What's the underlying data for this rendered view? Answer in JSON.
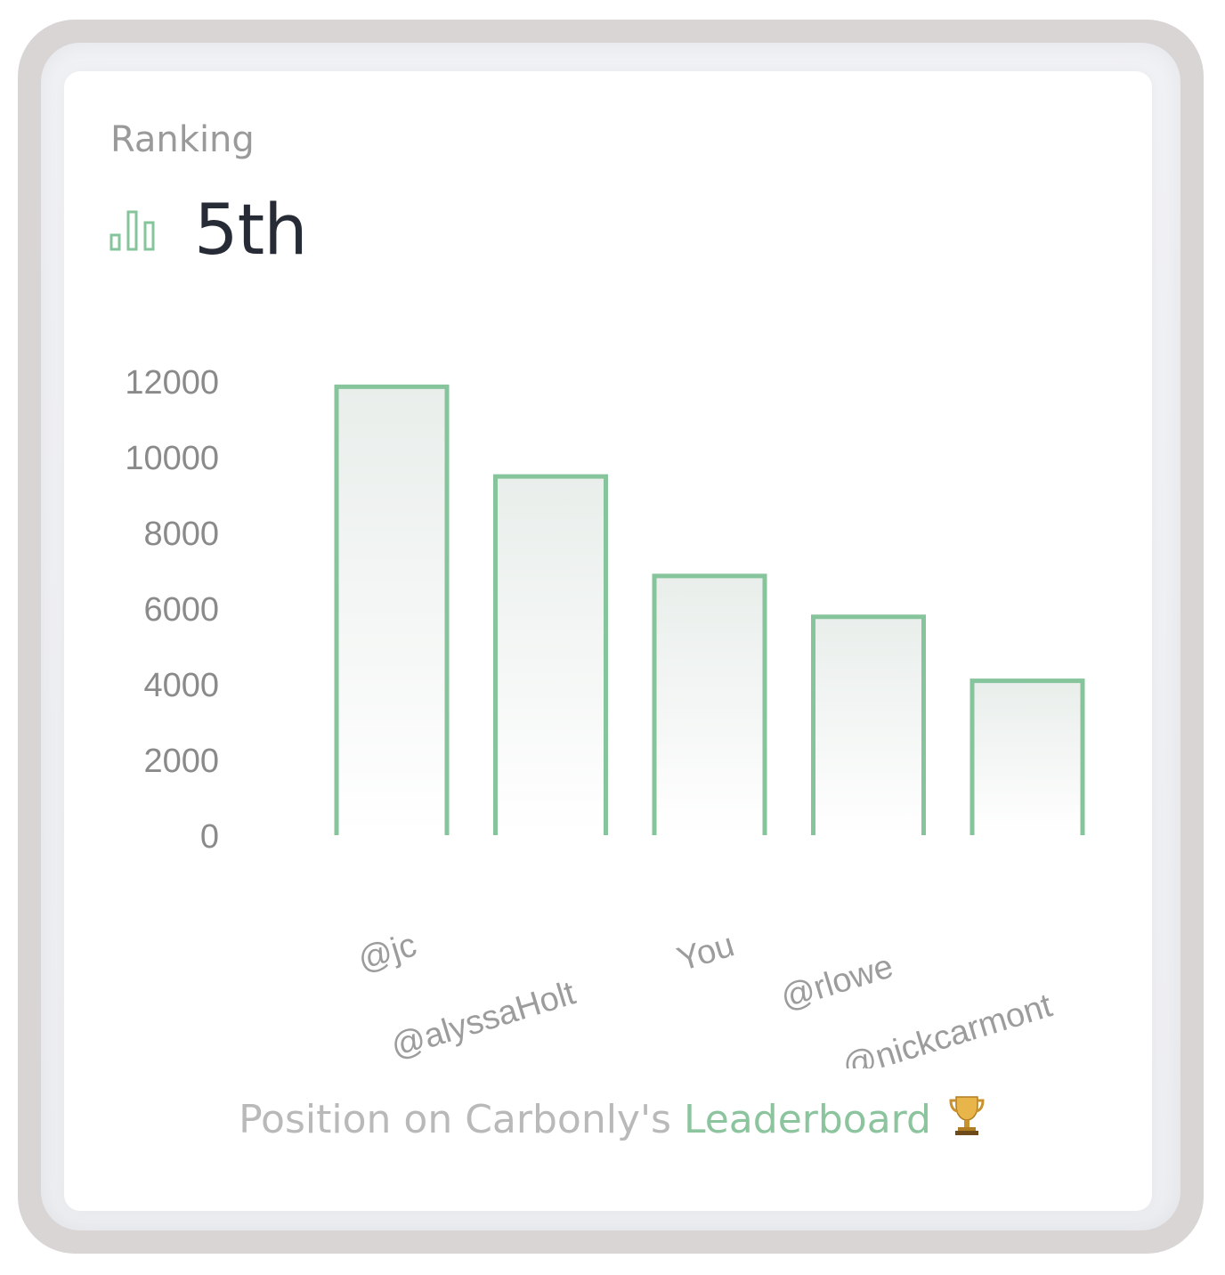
{
  "header": {
    "label": "Ranking",
    "rank": "5th",
    "icon": "bar-chart-icon"
  },
  "footer": {
    "prefix": "Position on Carbonly's ",
    "highlight": "Leaderboard",
    "icon": "trophy-icon"
  },
  "colors": {
    "accent": "#86c49c",
    "muted_text": "#9a9a9a",
    "rank_text": "#262b36"
  },
  "chart_data": {
    "type": "bar",
    "categories": [
      "@jc",
      "@alyssaHolt",
      "You",
      "@rlowe",
      "@nickcarmont"
    ],
    "values": [
      11850,
      9480,
      6850,
      5770,
      4080
    ],
    "yticks": [
      0,
      2000,
      4000,
      6000,
      8000,
      10000,
      12000
    ],
    "ylim": [
      0,
      12000
    ],
    "title": "",
    "xlabel": "",
    "ylabel": "",
    "grid": false,
    "legend": "none"
  }
}
